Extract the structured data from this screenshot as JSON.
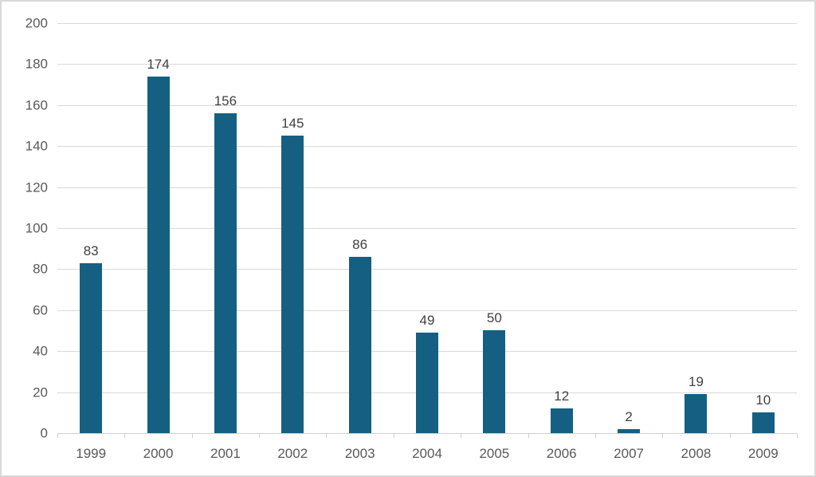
{
  "chart_data": {
    "type": "bar",
    "title": "",
    "xlabel": "",
    "ylabel": "",
    "categories": [
      "1999",
      "2000",
      "2001",
      "2002",
      "2003",
      "2004",
      "2005",
      "2006",
      "2007",
      "2008",
      "2009"
    ],
    "values": [
      83,
      174,
      156,
      145,
      86,
      49,
      50,
      12,
      2,
      19,
      10
    ],
    "data_labels": [
      "83",
      "174",
      "156",
      "145",
      "86",
      "49",
      "50",
      "12",
      "2",
      "19",
      "10"
    ],
    "ylim": [
      0,
      200
    ],
    "yticks": [
      0,
      20,
      40,
      60,
      80,
      100,
      120,
      140,
      160,
      180,
      200
    ],
    "grid": true,
    "legend": "none",
    "colors": {
      "bar_fill": "#156082",
      "gridline": "#d9d9d9",
      "axis_line": "#d0d0d0",
      "tick_label_text": "#595959",
      "data_label_text": "#404040",
      "background": "#ffffff",
      "frame_border": "#d9d9d9"
    }
  }
}
